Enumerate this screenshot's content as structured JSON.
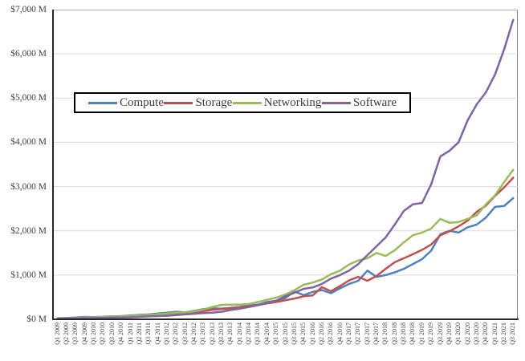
{
  "chart_data": {
    "type": "line",
    "title": "",
    "xlabel": "",
    "ylabel": "",
    "grid": true,
    "legend_position": "inside-upper-left-boxed",
    "y_axis": {
      "min": 0,
      "max": 7000,
      "step": 1000,
      "tick_labels": [
        "$0 M",
        "$1,000 M",
        "$2,000 M",
        "$3,000 M",
        "$4,000 M",
        "$5,000 M",
        "$6,000 M",
        "$7,000 M"
      ]
    },
    "categories": [
      "Q1 2009",
      "Q2 2009",
      "Q3 2009",
      "Q4 2009",
      "Q1 2010",
      "Q2 2010",
      "Q3 2010",
      "Q4 2010",
      "Q1 2011",
      "Q2 2011",
      "Q3 2011",
      "Q4 2011",
      "Q1 2012",
      "Q2 2012",
      "Q3 2012",
      "Q4 2012",
      "Q1 2013",
      "Q2 2013",
      "Q3 2013",
      "Q4 2013",
      "Q1 2014",
      "Q2 2014",
      "Q3 2014",
      "Q4 2014",
      "Q1 2015",
      "Q2 2015",
      "Q3 2015",
      "Q4 2015",
      "Q1 2016",
      "Q2 2016",
      "Q3 2016",
      "Q4 2016",
      "Q1 2017",
      "Q2 2017",
      "Q3 2017",
      "Q4 2017",
      "Q1 2018",
      "Q2 2018",
      "Q3 2018",
      "Q4 2018",
      "Q1 2019",
      "Q2 2019",
      "Q3 2019",
      "Q4 2019",
      "Q1 2020",
      "Q2 2020",
      "Q3 2020",
      "Q4 2020",
      "Q1 2021",
      "Q2 2021",
      "Q3 2021"
    ],
    "series": [
      {
        "name": "Compute",
        "color": "#4F81BD",
        "values": [
          25,
          32,
          40,
          55,
          50,
          58,
          65,
          72,
          85,
          100,
          110,
          130,
          150,
          170,
          160,
          190,
          230,
          250,
          240,
          260,
          280,
          310,
          330,
          390,
          420,
          480,
          630,
          545,
          620,
          660,
          590,
          700,
          800,
          870,
          1100,
          960,
          1000,
          1060,
          1140,
          1250,
          1360,
          1550,
          1920,
          2000,
          1960,
          2080,
          2140,
          2300,
          2540,
          2560,
          2740
        ]
      },
      {
        "name": "Storage",
        "color": "#C0504D",
        "values": [
          20,
          25,
          30,
          35,
          40,
          48,
          55,
          62,
          70,
          82,
          95,
          110,
          125,
          140,
          135,
          155,
          185,
          215,
          230,
          250,
          270,
          300,
          320,
          360,
          390,
          430,
          470,
          520,
          540,
          725,
          635,
          750,
          880,
          960,
          870,
          980,
          1140,
          1290,
          1380,
          1470,
          1570,
          1690,
          1900,
          1990,
          2100,
          2230,
          2430,
          2570,
          2790,
          2980,
          3200
        ]
      },
      {
        "name": "Networking",
        "color": "#9BBB59",
        "values": [
          22,
          28,
          34,
          40,
          45,
          52,
          60,
          68,
          75,
          88,
          100,
          115,
          130,
          150,
          160,
          180,
          220,
          280,
          327,
          330,
          330,
          345,
          390,
          440,
          490,
          560,
          660,
          780,
          830,
          900,
          1020,
          1100,
          1240,
          1330,
          1380,
          1500,
          1430,
          1560,
          1740,
          1900,
          1960,
          2050,
          2270,
          2180,
          2200,
          2270,
          2350,
          2600,
          2800,
          3100,
          3380
        ]
      },
      {
        "name": "Software",
        "color": "#8064A2",
        "values": [
          15,
          18,
          22,
          25,
          28,
          32,
          38,
          42,
          45,
          55,
          65,
          72,
          80,
          95,
          110,
          125,
          140,
          150,
          170,
          210,
          240,
          280,
          320,
          380,
          420,
          520,
          600,
          690,
          720,
          800,
          920,
          1000,
          1100,
          1250,
          1450,
          1650,
          1850,
          2140,
          2450,
          2600,
          2630,
          3050,
          3680,
          3810,
          4000,
          4500,
          4860,
          5130,
          5530,
          6100,
          6770
        ]
      }
    ],
    "colors": {
      "gridline": "#D9D9D9",
      "plot_border": "#7F7F7F",
      "axis_line": "#262626",
      "axis_text": "#3F3F3F",
      "legend_border": "#000000",
      "background": "#FFFFFF"
    }
  }
}
